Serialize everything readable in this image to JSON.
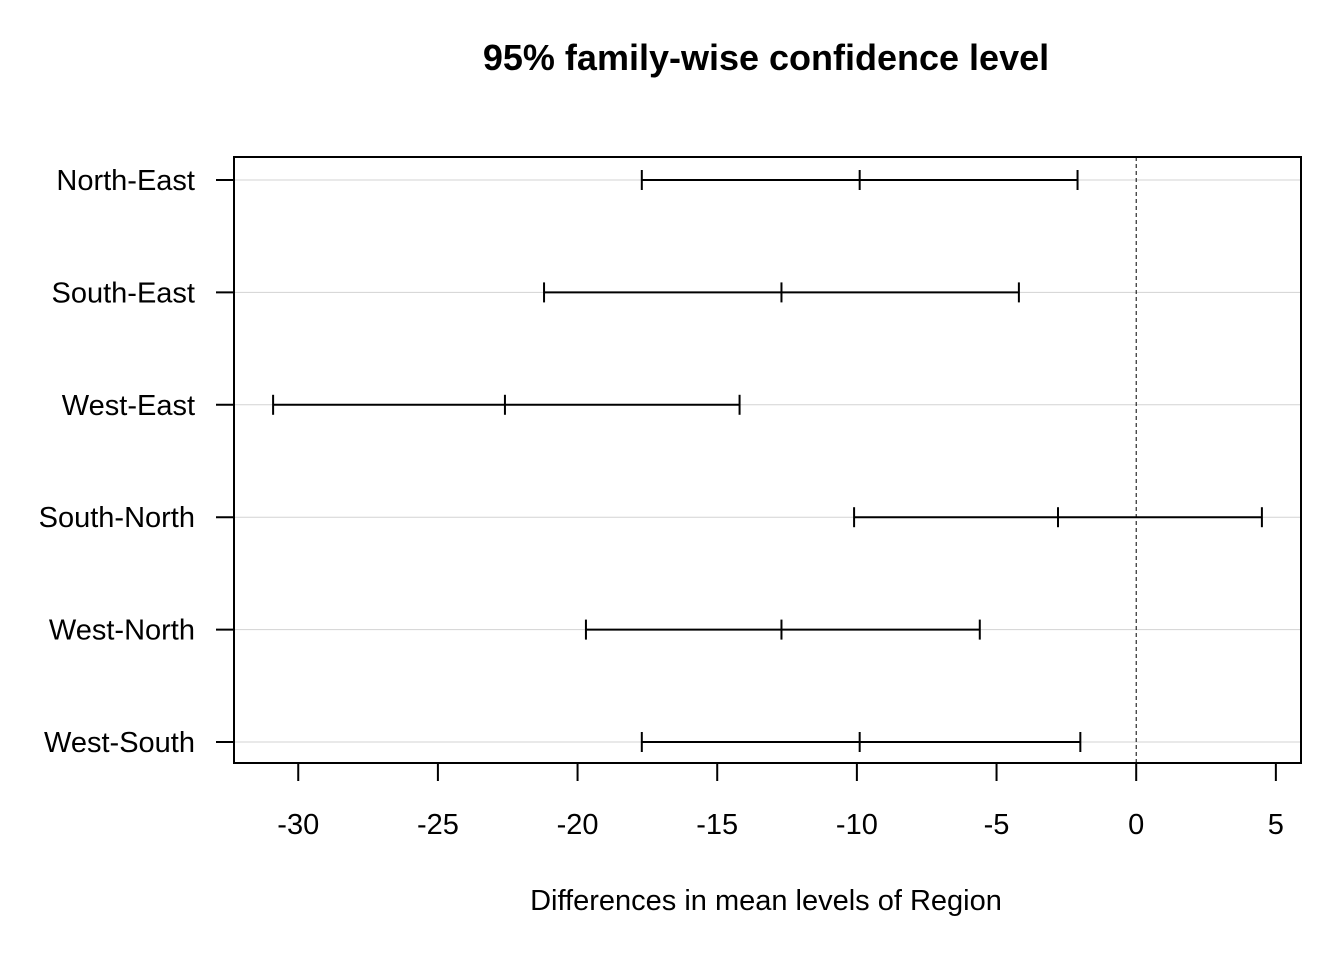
{
  "chart_data": {
    "type": "interval",
    "title": "95% family-wise confidence level",
    "xlabel": "Differences in mean levels of Region",
    "ylabel": "",
    "xlim": [
      -32.3,
      5.9
    ],
    "x_ticks": [
      -30,
      -25,
      -20,
      -15,
      -10,
      -5,
      0,
      5
    ],
    "x_tick_labels": [
      "-30",
      "-25",
      "-20",
      "-15",
      "-10",
      "-5",
      "0",
      "5"
    ],
    "reference_line": 0,
    "grid": "horizontal",
    "categories": [
      "North-East",
      "South-East",
      "West-East",
      "South-North",
      "West-North",
      "West-South"
    ],
    "intervals": [
      {
        "label": "North-East",
        "lwr": -17.7,
        "diff": -9.9,
        "upr": -2.1
      },
      {
        "label": "South-East",
        "lwr": -21.2,
        "diff": -12.7,
        "upr": -4.2
      },
      {
        "label": "West-East",
        "lwr": -30.9,
        "diff": -22.6,
        "upr": -14.2
      },
      {
        "label": "South-North",
        "lwr": -10.1,
        "diff": -2.8,
        "upr": 4.5
      },
      {
        "label": "West-North",
        "lwr": -19.7,
        "diff": -12.7,
        "upr": -5.6
      },
      {
        "label": "West-South",
        "lwr": -17.7,
        "diff": -9.9,
        "upr": -2.0
      }
    ]
  }
}
